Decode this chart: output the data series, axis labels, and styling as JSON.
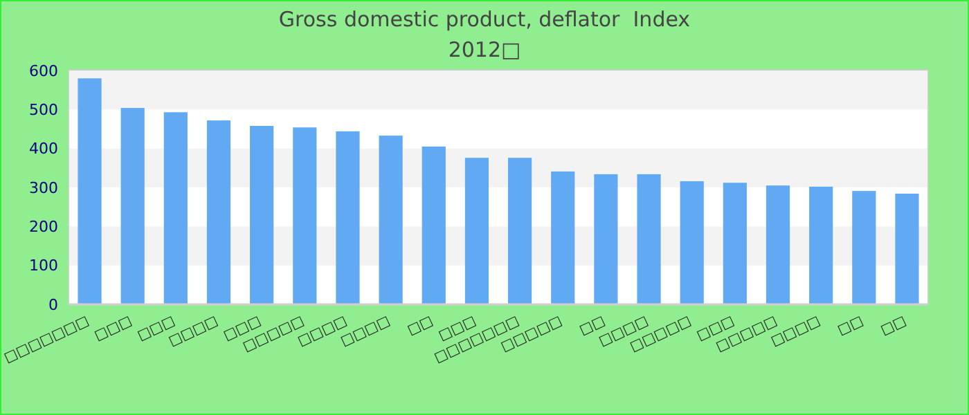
{
  "chart_data": {
    "type": "bar",
    "title": "Gross domestic product, deflator  Index",
    "subtitle": "2012□",
    "categories": [
      "□□□□□□□",
      "□□□",
      "□□□",
      "□□□□",
      "□□□",
      "□□□□□",
      "□□□□",
      "□□□□",
      "□□",
      "□□□",
      "□□□□□□□",
      "□□□□□",
      "□□",
      "□□□□",
      "□□□□□",
      "□□□",
      "□□□□□",
      "□□□□",
      "□□",
      "□□"
    ],
    "values": [
      580,
      504,
      493,
      472,
      458,
      454,
      444,
      433,
      405,
      376,
      376,
      341,
      334,
      334,
      316,
      312,
      305,
      302,
      291,
      284
    ],
    "color": "#62a9f4",
    "ylim": [
      0,
      600
    ],
    "yticks": [
      0,
      100,
      200,
      300,
      400,
      500,
      600
    ]
  }
}
